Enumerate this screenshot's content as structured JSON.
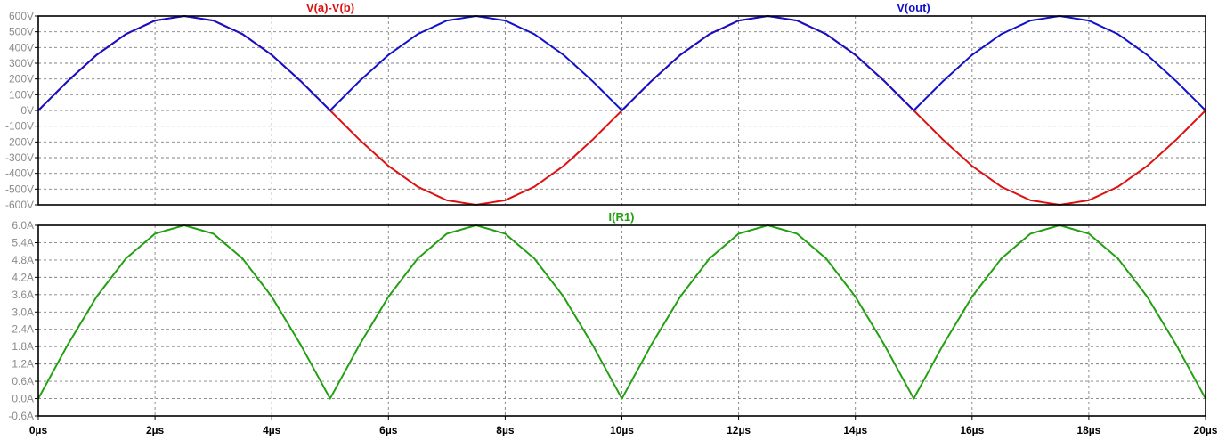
{
  "chart_data": [
    {
      "type": "line",
      "panel": "top",
      "title": "",
      "xlabel": "",
      "ylabel": "",
      "x_unit": "µs",
      "y_unit": "V",
      "xlim": [
        0,
        20
      ],
      "ylim": [
        -600,
        600
      ],
      "grid": true,
      "x_ticks": [
        "0µs",
        "2µs",
        "4µs",
        "6µs",
        "8µs",
        "10µs",
        "12µs",
        "14µs",
        "16µs",
        "18µs",
        "20µs"
      ],
      "y_ticks": [
        "600V",
        "500V",
        "400V",
        "300V",
        "200V",
        "100V",
        "0V",
        "-100V",
        "-200V",
        "-300V",
        "-400V",
        "-500V",
        "-600V"
      ],
      "series": [
        {
          "name": "V(a)-V(b)",
          "color": "#dd1111",
          "x": [
            0,
            0.5,
            1,
            1.5,
            2,
            2.5,
            3,
            3.5,
            4,
            4.5,
            5,
            5.5,
            6,
            6.5,
            7,
            7.5,
            8,
            8.5,
            9,
            9.5,
            10,
            10.5,
            11,
            11.5,
            12,
            12.5,
            13,
            13.5,
            14,
            14.5,
            15,
            15.5,
            16,
            16.5,
            17,
            17.5,
            18,
            18.5,
            19,
            19.5,
            20
          ],
          "values": [
            0,
            185,
            353,
            485,
            571,
            600,
            571,
            485,
            353,
            185,
            0,
            -185,
            -353,
            -485,
            -571,
            -600,
            -571,
            -485,
            -353,
            -185,
            0,
            185,
            353,
            485,
            571,
            600,
            571,
            485,
            353,
            185,
            0,
            -185,
            -353,
            -485,
            -571,
            -600,
            -571,
            -485,
            -353,
            -185,
            0
          ]
        },
        {
          "name": "V(out)",
          "color": "#1111cc",
          "x": [
            0,
            0.5,
            1,
            1.5,
            2,
            2.5,
            3,
            3.5,
            4,
            4.5,
            5,
            5.5,
            6,
            6.5,
            7,
            7.5,
            8,
            8.5,
            9,
            9.5,
            10,
            10.5,
            11,
            11.5,
            12,
            12.5,
            13,
            13.5,
            14,
            14.5,
            15,
            15.5,
            16,
            16.5,
            17,
            17.5,
            18,
            18.5,
            19,
            19.5,
            20
          ],
          "values": [
            0,
            185,
            353,
            485,
            571,
            600,
            571,
            485,
            353,
            185,
            0,
            185,
            353,
            485,
            571,
            600,
            571,
            485,
            353,
            185,
            0,
            185,
            353,
            485,
            571,
            600,
            571,
            485,
            353,
            185,
            0,
            185,
            353,
            485,
            571,
            600,
            571,
            485,
            353,
            185,
            0
          ]
        }
      ]
    },
    {
      "type": "line",
      "panel": "bottom",
      "title": "",
      "xlabel": "",
      "ylabel": "",
      "x_unit": "µs",
      "y_unit": "A",
      "xlim": [
        0,
        20
      ],
      "ylim": [
        -0.6,
        6.0
      ],
      "grid": true,
      "x_ticks": [
        "0µs",
        "2µs",
        "4µs",
        "6µs",
        "8µs",
        "10µs",
        "12µs",
        "14µs",
        "16µs",
        "18µs",
        "20µs"
      ],
      "y_ticks": [
        "6.0A",
        "5.4A",
        "4.8A",
        "4.2A",
        "3.6A",
        "3.0A",
        "2.4A",
        "1.8A",
        "1.2A",
        "0.6A",
        "0.0A",
        "-0.6A"
      ],
      "series": [
        {
          "name": "I(R1)",
          "color": "#22a011",
          "x": [
            0,
            0.5,
            1,
            1.5,
            2,
            2.5,
            3,
            3.5,
            4,
            4.5,
            5,
            5.5,
            6,
            6.5,
            7,
            7.5,
            8,
            8.5,
            9,
            9.5,
            10,
            10.5,
            11,
            11.5,
            12,
            12.5,
            13,
            13.5,
            14,
            14.5,
            15,
            15.5,
            16,
            16.5,
            17,
            17.5,
            18,
            18.5,
            19,
            19.5,
            20
          ],
          "values": [
            0,
            1.85,
            3.53,
            4.85,
            5.71,
            6.0,
            5.71,
            4.85,
            3.53,
            1.85,
            0,
            1.85,
            3.53,
            4.85,
            5.71,
            6.0,
            5.71,
            4.85,
            3.53,
            1.85,
            0,
            1.85,
            3.53,
            4.85,
            5.71,
            6.0,
            5.71,
            4.85,
            3.53,
            1.85,
            0,
            1.85,
            3.53,
            4.85,
            5.71,
            6.0,
            5.71,
            4.85,
            3.53,
            1.85,
            0
          ]
        }
      ]
    }
  ]
}
